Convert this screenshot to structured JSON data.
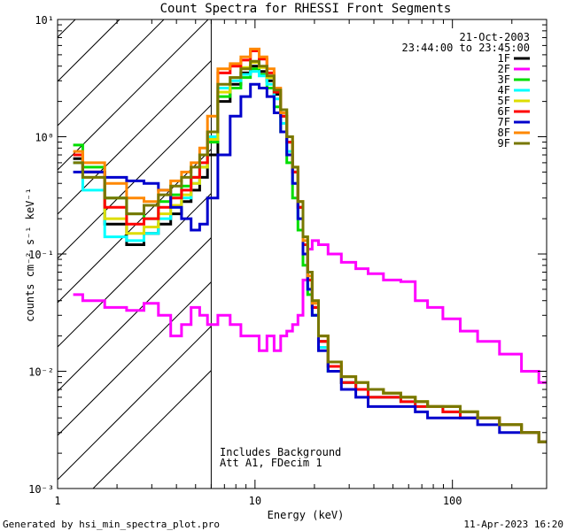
{
  "chart_data": {
    "type": "line",
    "title": "Count Spectra for RHESSI Front Segments",
    "xlabel": "Energy (keV)",
    "ylabel": "counts cm⁻² s⁻¹ keV⁻¹",
    "xscale": "log",
    "yscale": "log",
    "xlim": [
      1,
      300
    ],
    "ylim": [
      0.001,
      10
    ],
    "x_ticks": [
      {
        "value": 1,
        "label": "1"
      },
      {
        "value": 10,
        "label": "10"
      },
      {
        "value": 100,
        "label": "100"
      }
    ],
    "y_ticks": [
      {
        "value": 0.001,
        "label": "10⁻³"
      },
      {
        "value": 0.01,
        "label": "10⁻²"
      },
      {
        "value": 0.1,
        "label": "10⁻¹"
      },
      {
        "value": 1,
        "label": "10⁰"
      },
      {
        "value": 10,
        "label": "10¹"
      }
    ],
    "date": "21-Oct-2003",
    "time_range": "23:44:00 to 23:45:00",
    "hatched_below_keV": 6,
    "annotations": [
      "Includes Background",
      "Att A1, FDecim 1"
    ],
    "footer_left": "Generated by hsi_min_spectra_plot.pro",
    "footer_right": "11-Apr-2023 16:20",
    "x": [
      1.2,
      1.5,
      2,
      2.5,
      3,
      3.5,
      4,
      4.5,
      5,
      5.5,
      6,
      7,
      8,
      9,
      10,
      11,
      12,
      13,
      14,
      15,
      16,
      17,
      18,
      19,
      20,
      22,
      25,
      30,
      35,
      40,
      50,
      60,
      70,
      80,
      100,
      120,
      150,
      200,
      250,
      300
    ],
    "series": [
      {
        "name": "1F",
        "color": "#000000",
        "values": [
          0.65,
          0.5,
          0.18,
          0.12,
          0.15,
          0.18,
          0.22,
          0.28,
          0.35,
          0.45,
          0.7,
          2.0,
          2.8,
          3.5,
          4.0,
          3.6,
          3.0,
          2.3,
          1.5,
          0.9,
          0.5,
          0.25,
          0.12,
          0.06,
          0.035,
          0.018,
          0.011,
          0.008,
          0.007,
          0.006,
          0.006,
          0.006,
          0.0055,
          0.005,
          0.005,
          0.0045,
          0.004,
          0.0035,
          0.003,
          0.0025
        ]
      },
      {
        "name": "2F",
        "color": "#ff00ff",
        "values": [
          0.045,
          0.04,
          0.035,
          0.033,
          0.038,
          0.03,
          0.02,
          0.025,
          0.035,
          0.03,
          0.025,
          0.03,
          0.025,
          0.02,
          0.02,
          0.015,
          0.02,
          0.015,
          0.02,
          0.022,
          0.025,
          0.03,
          0.06,
          0.11,
          0.13,
          0.12,
          0.1,
          0.085,
          0.075,
          0.068,
          0.06,
          0.058,
          0.04,
          0.035,
          0.028,
          0.022,
          0.018,
          0.014,
          0.01,
          0.008
        ]
      },
      {
        "name": "3F",
        "color": "#00dd00",
        "values": [
          0.85,
          0.55,
          0.3,
          0.22,
          0.2,
          0.28,
          0.32,
          0.38,
          0.45,
          0.55,
          0.9,
          2.2,
          2.6,
          3.2,
          3.8,
          3.4,
          2.6,
          1.8,
          1.1,
          0.6,
          0.3,
          0.16,
          0.08,
          0.045,
          0.03,
          0.016,
          0.01,
          0.008,
          0.007,
          0.007,
          0.0065,
          0.006,
          0.0055,
          0.005,
          0.005,
          0.0045,
          0.004,
          0.0035,
          0.003,
          0.0025
        ]
      },
      {
        "name": "4F",
        "color": "#00ffff",
        "values": [
          0.6,
          0.35,
          0.14,
          0.13,
          0.15,
          0.2,
          0.25,
          0.3,
          0.4,
          0.55,
          1.0,
          2.6,
          3.0,
          3.4,
          3.6,
          3.3,
          2.8,
          2.1,
          1.3,
          0.75,
          0.4,
          0.2,
          0.1,
          0.05,
          0.03,
          0.016,
          0.01,
          0.008,
          0.007,
          0.006,
          0.006,
          0.0055,
          0.005,
          0.005,
          0.0045,
          0.004,
          0.004,
          0.0035,
          0.003,
          0.0025
        ]
      },
      {
        "name": "5F",
        "color": "#dddd00",
        "values": [
          0.7,
          0.45,
          0.2,
          0.15,
          0.17,
          0.22,
          0.26,
          0.32,
          0.4,
          0.55,
          0.95,
          2.4,
          3.2,
          3.9,
          4.3,
          3.9,
          3.2,
          2.5,
          1.7,
          1.0,
          0.55,
          0.28,
          0.14,
          0.07,
          0.04,
          0.02,
          0.012,
          0.009,
          0.008,
          0.007,
          0.0065,
          0.006,
          0.0055,
          0.005,
          0.005,
          0.0045,
          0.004,
          0.0035,
          0.003,
          0.0025
        ]
      },
      {
        "name": "6F",
        "color": "#ff0000",
        "values": [
          0.7,
          0.5,
          0.25,
          0.18,
          0.2,
          0.25,
          0.3,
          0.35,
          0.45,
          0.6,
          1.1,
          3.5,
          4.0,
          4.5,
          5.4,
          4.6,
          3.5,
          2.4,
          1.5,
          0.9,
          0.5,
          0.25,
          0.12,
          0.06,
          0.035,
          0.018,
          0.011,
          0.008,
          0.007,
          0.006,
          0.006,
          0.0055,
          0.005,
          0.005,
          0.0045,
          0.004,
          0.004,
          0.0035,
          0.003,
          0.0025
        ]
      },
      {
        "name": "7F",
        "color": "#0000cc",
        "values": [
          0.5,
          0.5,
          0.45,
          0.42,
          0.4,
          0.35,
          0.25,
          0.2,
          0.16,
          0.18,
          0.3,
          0.7,
          1.5,
          2.2,
          2.8,
          2.6,
          2.2,
          1.6,
          1.1,
          0.7,
          0.4,
          0.2,
          0.1,
          0.05,
          0.03,
          0.015,
          0.01,
          0.007,
          0.006,
          0.005,
          0.005,
          0.005,
          0.0045,
          0.004,
          0.004,
          0.004,
          0.0035,
          0.003,
          0.003,
          0.0025
        ]
      },
      {
        "name": "8F",
        "color": "#ff8800",
        "values": [
          0.75,
          0.6,
          0.4,
          0.3,
          0.28,
          0.35,
          0.42,
          0.5,
          0.6,
          0.8,
          1.5,
          3.8,
          4.2,
          4.8,
          5.6,
          4.8,
          3.8,
          2.6,
          1.6,
          1.0,
          0.55,
          0.28,
          0.13,
          0.065,
          0.038,
          0.02,
          0.012,
          0.009,
          0.008,
          0.007,
          0.0065,
          0.006,
          0.0055,
          0.005,
          0.005,
          0.0045,
          0.004,
          0.0035,
          0.003,
          0.0025
        ]
      },
      {
        "name": "9F",
        "color": "#777700",
        "values": [
          0.6,
          0.45,
          0.3,
          0.22,
          0.26,
          0.32,
          0.38,
          0.45,
          0.55,
          0.7,
          1.1,
          2.8,
          3.2,
          3.8,
          4.4,
          4.0,
          3.3,
          2.5,
          1.7,
          1.0,
          0.55,
          0.28,
          0.14,
          0.07,
          0.04,
          0.02,
          0.012,
          0.009,
          0.008,
          0.007,
          0.0065,
          0.006,
          0.0055,
          0.005,
          0.005,
          0.0045,
          0.004,
          0.0035,
          0.003,
          0.0025
        ]
      }
    ]
  }
}
